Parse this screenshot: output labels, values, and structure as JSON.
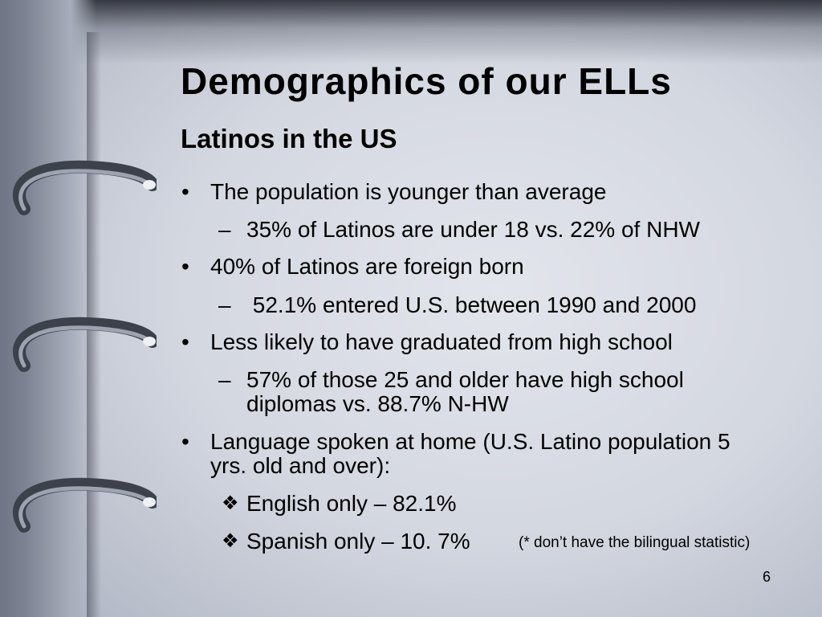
{
  "slide": {
    "title": "Demographics of our ELLs",
    "subtitle": "Latinos in the US",
    "bullet_symbol": "•",
    "dash_symbol": "–",
    "diamond_symbol": "❖",
    "items": [
      {
        "text": "The population is younger than average"
      },
      {
        "text": "35% of Latinos are under 18 vs. 22% of NHW"
      },
      {
        "text": "40% of Latinos are foreign born"
      },
      {
        "text": " 52.1% entered U.S. between 1990 and 2000"
      },
      {
        "text": "Less likely to have graduated from high school"
      },
      {
        "line1": "57% of those 25 and older have high school",
        "line2": "diplomas vs. 88.7% N-HW"
      },
      {
        "line1": "Language spoken at home (U.S. Latino population 5",
        "line2": "yrs. old and over):"
      },
      {
        "text": "English only – 82.1%"
      },
      {
        "text": "Spanish only – 10. 7%"
      }
    ],
    "note": "(* don’t have the bilingual statistic)",
    "page_number": "6"
  },
  "colors": {
    "text": "#000000",
    "background": "#d3d7e0"
  }
}
